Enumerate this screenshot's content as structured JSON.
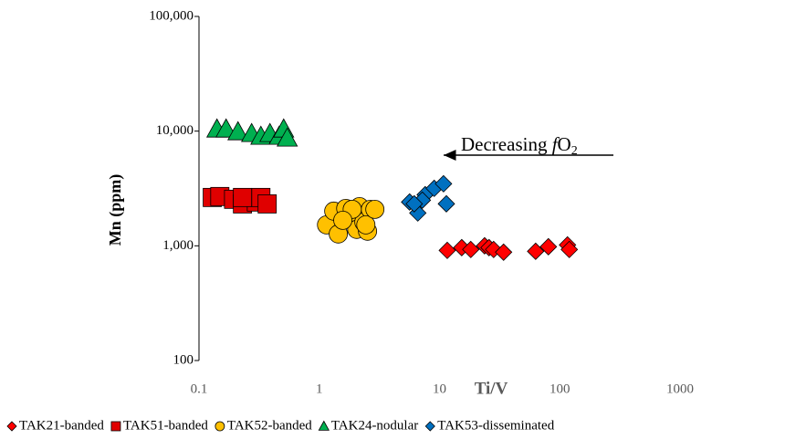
{
  "chart_data": {
    "type": "scatter",
    "x_label": "Ti/V",
    "y_label": "Mn (ppm)",
    "xscale": "log",
    "yscale": "log",
    "xlim": [
      0.1,
      1000
    ],
    "ylim": [
      100,
      100000
    ],
    "xticks": [
      0.1,
      1,
      10,
      100,
      1000
    ],
    "yticks": [
      100,
      {
        "value": 1000,
        "label": "1,000"
      },
      {
        "value": 10000,
        "label": "10,000"
      },
      {
        "value": 100000,
        "label": "100,000"
      }
    ],
    "legend": "bottom",
    "annotation": {
      "parts": [
        "Decreasing ",
        "f",
        "O",
        "2"
      ]
    },
    "series": [
      {
        "name": "TAK21-banded",
        "color": "#ff0000",
        "marker": "diamond",
        "x": [
          11.6,
          15.3,
          18.2,
          23.7,
          25.8,
          28.2,
          34.1,
          63,
          80.4,
          116,
          120
        ],
        "y": [
          912,
          964,
          929,
          1000,
          964,
          929,
          880,
          896,
          982,
          1018,
          929
        ]
      },
      {
        "name": "TAK51-banded",
        "color": "#e00000",
        "marker": "square",
        "x": [
          0.129,
          0.149,
          0.194,
          0.23,
          0.3,
          0.327,
          0.369,
          0.23
        ],
        "y": [
          2640,
          2690,
          2545,
          2320,
          2410,
          2640,
          2320,
          2640
        ]
      },
      {
        "name": "TAK52-banded",
        "color": "#ffc000",
        "marker": "circle",
        "x": [
          1.15,
          1.32,
          1.44,
          1.66,
          1.88,
          2.05,
          2.16,
          2.35,
          2.52,
          2.66,
          2.44,
          1.88,
          1.57,
          2.9
        ],
        "y": [
          1524,
          2007,
          1269,
          2118,
          1733,
          1391,
          2198,
          1610,
          1341,
          2080,
          1524,
          2080,
          1670,
          2080
        ]
      },
      {
        "name": "TAK24-nodular",
        "color": "#00b050",
        "marker": "triangle",
        "x": [
          0.141,
          0.168,
          0.211,
          0.274,
          0.327,
          0.389,
          0.464,
          0.506,
          0.542
        ],
        "y": [
          10430,
          10430,
          9870,
          9520,
          9010,
          9520,
          9010,
          10430,
          8690
        ]
      },
      {
        "name": "TAK53-disseminated",
        "color": "#0070c0",
        "marker": "diamond",
        "x": [
          5.64,
          6.6,
          7.6,
          9.04,
          10.8,
          11.4,
          7.2,
          6.16
        ],
        "y": [
          2410,
          1933,
          2790,
          3170,
          3475,
          2323,
          2500,
          2323
        ]
      }
    ]
  }
}
